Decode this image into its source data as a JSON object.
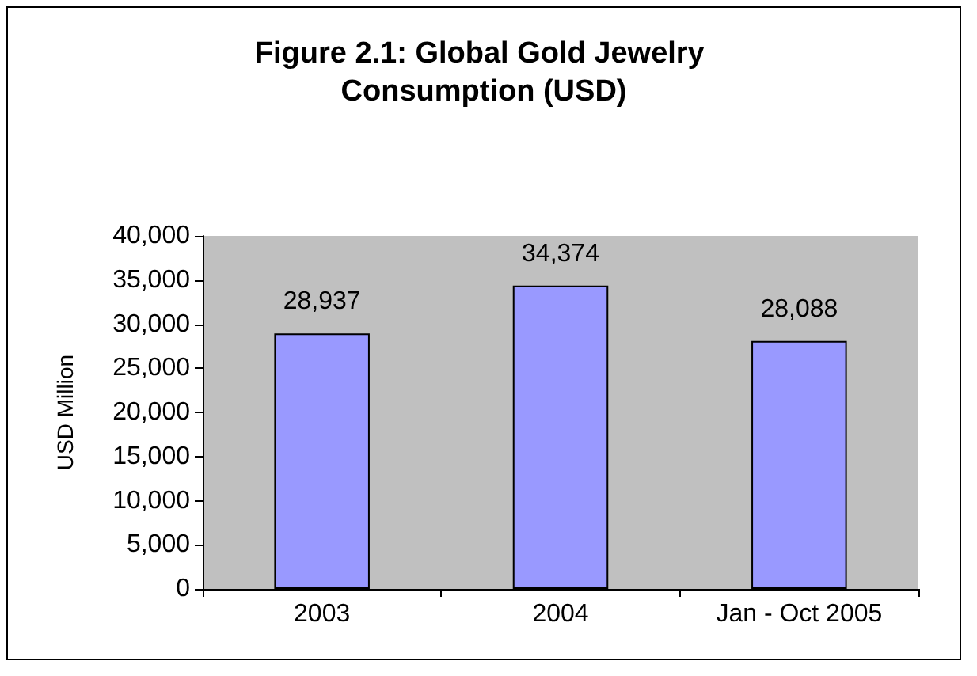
{
  "chart_data": {
    "type": "bar",
    "title": "Figure 2.1: Global Gold Jewelry Consumption (USD)",
    "ylabel": "USD Million",
    "categories": [
      "2003",
      "2004",
      "Jan - Oct 2005"
    ],
    "values": [
      28937,
      34374,
      28088
    ],
    "color": "#9999ff",
    "value_labels": [
      "28,937",
      "34,374",
      "28,088"
    ],
    "ylim": [
      0,
      40000
    ],
    "yticks": [
      {
        "value": 0,
        "label": "0"
      },
      {
        "value": 5000,
        "label": "5,000"
      },
      {
        "value": 10000,
        "label": "10,000"
      },
      {
        "value": 15000,
        "label": "15,000"
      },
      {
        "value": 20000,
        "label": "20,000"
      },
      {
        "value": 25000,
        "label": "25,000"
      },
      {
        "value": 30000,
        "label": "30,000"
      },
      {
        "value": 35000,
        "label": "35,000"
      },
      {
        "value": 40000,
        "label": "40,000"
      }
    ]
  }
}
